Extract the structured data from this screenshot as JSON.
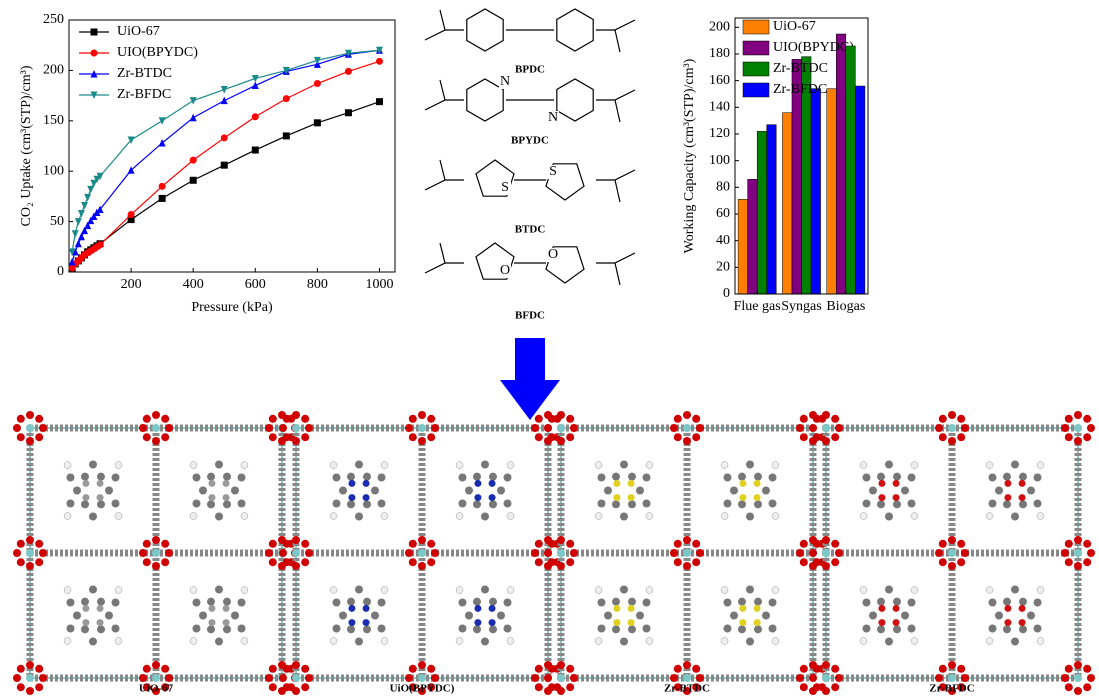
{
  "chart_data": [
    {
      "type": "line",
      "x_label": "Pressure (kPa)",
      "y_label": "CO₂ Uptake (cm³(STP)/cm³)",
      "x": [
        10,
        20,
        30,
        40,
        50,
        60,
        70,
        80,
        90,
        100,
        200,
        300,
        400,
        500,
        600,
        700,
        800,
        900,
        1000
      ],
      "series": [
        {
          "name": "UiO-67",
          "color": "#000000",
          "marker": "square",
          "values": [
            4,
            8,
            11,
            14,
            17,
            20,
            22,
            24,
            26,
            28,
            52,
            73,
            91,
            106,
            121,
            135,
            148,
            158,
            169
          ]
        },
        {
          "name": "UIO(BPYDC)",
          "color": "#ff0000",
          "marker": "circle",
          "values": [
            4,
            8,
            11,
            14,
            17,
            19,
            21,
            23,
            25,
            27,
            57,
            85,
            111,
            133,
            154,
            172,
            187,
            199,
            209
          ]
        },
        {
          "name": "Zr-BTDC",
          "color": "#0000ff",
          "marker": "triangle",
          "values": [
            10,
            20,
            28,
            35,
            41,
            46,
            51,
            55,
            59,
            62,
            101,
            128,
            153,
            170,
            185,
            199,
            206,
            216,
            220
          ]
        },
        {
          "name": "Zr-BFDC",
          "color": "#1a8a8a",
          "marker": "triangle-down",
          "values": [
            20,
            38,
            50,
            58,
            66,
            74,
            82,
            88,
            92,
            95,
            131,
            150,
            170,
            181,
            192,
            200,
            210,
            217,
            220
          ]
        }
      ],
      "xlim": [
        0,
        1050
      ],
      "ylim": [
        0,
        250
      ],
      "xticks": [
        200,
        400,
        600,
        800,
        1000
      ],
      "yticks": [
        0,
        50,
        100,
        150,
        200,
        250
      ],
      "legend": "upper left"
    },
    {
      "type": "bar",
      "y_label": "Working Capacity (cm³(STP)/cm³)",
      "categories": [
        "Flue gas",
        "Syngas",
        "Biogas"
      ],
      "series": [
        {
          "name": "UiO-67",
          "color": "#ff8000",
          "values": [
            71,
            136,
            154
          ]
        },
        {
          "name": "UIO(BPYDC)",
          "color": "#800080",
          "values": [
            86,
            176,
            195
          ]
        },
        {
          "name": "Zr-BTDC",
          "color": "#008000",
          "values": [
            122,
            178,
            186
          ]
        },
        {
          "name": "Zr-BFDC",
          "color": "#0000ff",
          "values": [
            127,
            154,
            156
          ]
        }
      ],
      "ylim": [
        0,
        207
      ],
      "yticks": [
        0,
        20,
        40,
        60,
        80,
        100,
        120,
        140,
        160,
        180,
        200
      ],
      "legend": "upper left"
    }
  ],
  "linkers": [
    {
      "label": "BPDC"
    },
    {
      "label": "BPYDC",
      "atoms": [
        "N",
        "N"
      ]
    },
    {
      "label": "BTDC",
      "atoms": [
        "S",
        "S"
      ]
    },
    {
      "label": "BFDC",
      "atoms": [
        "O",
        "O"
      ]
    }
  ],
  "structures": [
    {
      "label": "UiO-67"
    },
    {
      "label": "UiO(BPYDC)"
    },
    {
      "label": "Zr-BTDC"
    },
    {
      "label": "Zr-BFDC"
    }
  ]
}
